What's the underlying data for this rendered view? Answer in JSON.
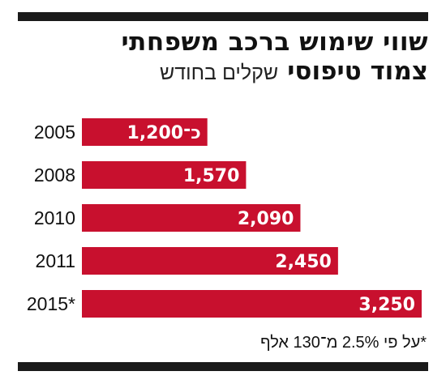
{
  "title": {
    "line1": "שווי שימוש ברכב משפחתי",
    "line2": "צמוד טיפוסי",
    "unit": "שקלים בחודש"
  },
  "footnote": "*על פי 2.5% מ־130 אלף",
  "colors": {
    "bar": "#c8102e",
    "bar_text": "#ffffff",
    "rules": "#1a1a1a",
    "text": "#111111"
  },
  "chart_data": {
    "type": "bar",
    "orientation": "horizontal",
    "categories": [
      "2005",
      "2008",
      "2010",
      "2011",
      "2015*"
    ],
    "values": [
      1200,
      1570,
      2090,
      2450,
      3250
    ],
    "data_labels": [
      "כ־1,200",
      "1,570",
      "2,090",
      "2,450",
      "3,250"
    ],
    "title": "שווי שימוש ברכב משפחתי צמוד טיפוסי",
    "unit": "שקלים בחודש",
    "xlim": [
      0,
      3250
    ],
    "grid": false,
    "legend": "none"
  }
}
